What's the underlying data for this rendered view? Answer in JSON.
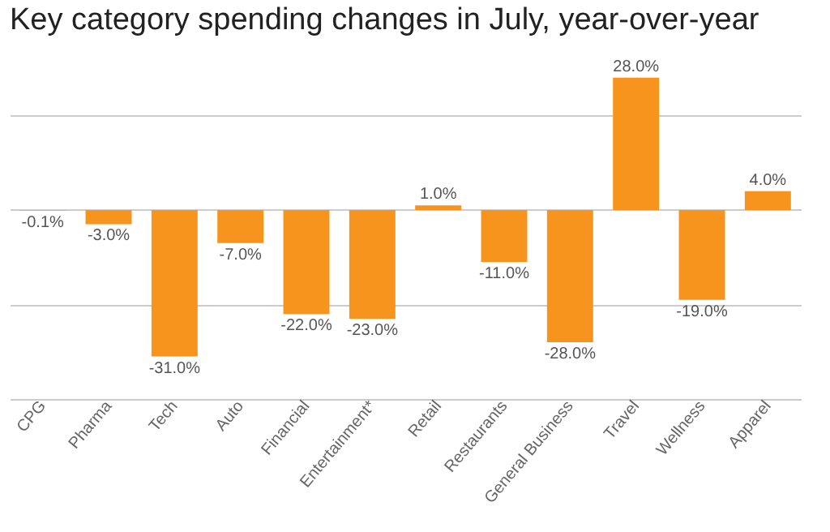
{
  "chart_data": {
    "type": "bar",
    "title": "Key category spending changes in July, year-over-year",
    "categories": [
      "CPG",
      "Pharma",
      "Tech",
      "Auto",
      "Financial",
      "Entertainment*",
      "Retail",
      "Restaurants",
      "General Business",
      "Travel",
      "Wellness",
      "Apparel"
    ],
    "series": [
      {
        "color": "#f7941d",
        "values": [
          -0.1,
          -3.0,
          -31.0,
          -7.0,
          -22.0,
          -23.0,
          1.0,
          -11.0,
          -28.0,
          28.0,
          -19.0,
          4.0
        ],
        "value_labels": [
          "-0.1%",
          "-3.0%",
          "-31.0%",
          "-7.0%",
          "-22.0%",
          "-23.0%",
          "1.0%",
          "-11.0%",
          "-28.0%",
          "28.0%",
          "-19.0%",
          "4.0%"
        ]
      }
    ],
    "ylim": [
      -40,
      29
    ],
    "yticks": [
      {
        "value": -40,
        "label": null
      },
      {
        "value": -20,
        "label": null
      },
      {
        "value": 0,
        "label": null
      },
      {
        "value": 20,
        "label": null
      }
    ],
    "grid": "y",
    "tick_labels": "x"
  }
}
